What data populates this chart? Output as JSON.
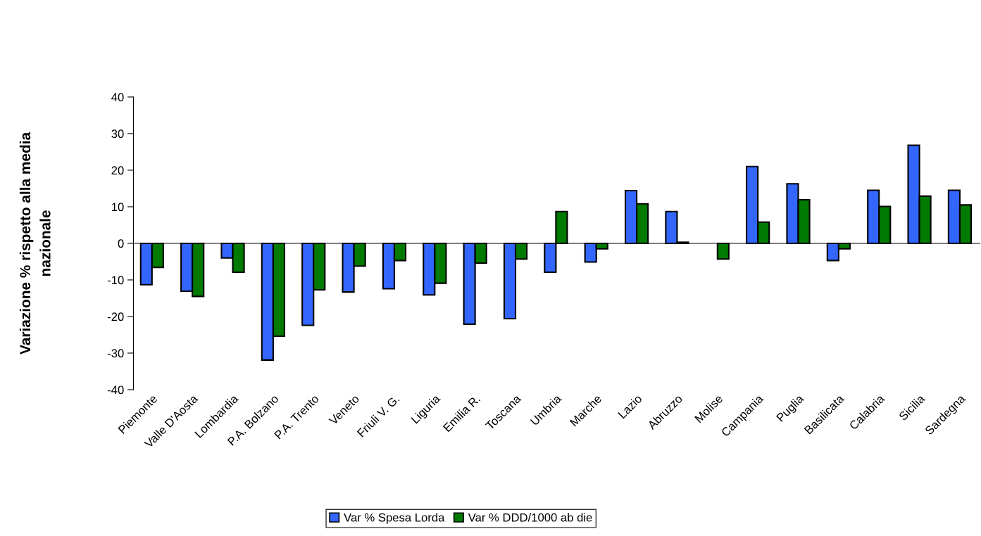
{
  "chart_data": {
    "type": "bar",
    "ylabel": "Variazione % rispetto alla media\nnazionale",
    "categories": [
      "Piemonte",
      "Valle D'Aosta",
      "Lombardia",
      "P.A. Bolzano",
      "P.A. Trento",
      "Veneto",
      "Friuli V. G.",
      "Liguria",
      "Emilia R.",
      "Toscana",
      "Umbria",
      "Marche",
      "Lazio",
      "Abruzzo",
      "Molise",
      "Campania",
      "Puglia",
      "Basilicata",
      "Calabria",
      "Sicilia",
      "Sardegna"
    ],
    "series": [
      {
        "name": "Var % Spesa Lorda",
        "color": "#3366ff",
        "values": [
          -11.3,
          -13.1,
          -4.0,
          -31.9,
          -22.4,
          -13.3,
          -12.4,
          -14.1,
          -22.1,
          -20.6,
          -7.9,
          -5.1,
          14.4,
          8.7,
          null,
          21.0,
          16.3,
          -4.7,
          14.5,
          26.8,
          14.5
        ]
      },
      {
        "name": "Var % DDD/1000 ab die",
        "color": "#007a00",
        "values": [
          -6.6,
          -14.5,
          -7.9,
          -25.4,
          -12.7,
          -6.2,
          -4.7,
          -10.9,
          -5.4,
          -4.3,
          8.7,
          -1.5,
          10.8,
          0.3,
          -4.3,
          5.8,
          11.9,
          -1.5,
          10.1,
          12.9,
          10.5
        ]
      }
    ],
    "ylim": [
      -40,
      40
    ],
    "yticks": [
      -40,
      -30,
      -20,
      -10,
      0,
      10,
      20,
      30,
      40
    ],
    "legend": "bottom"
  }
}
